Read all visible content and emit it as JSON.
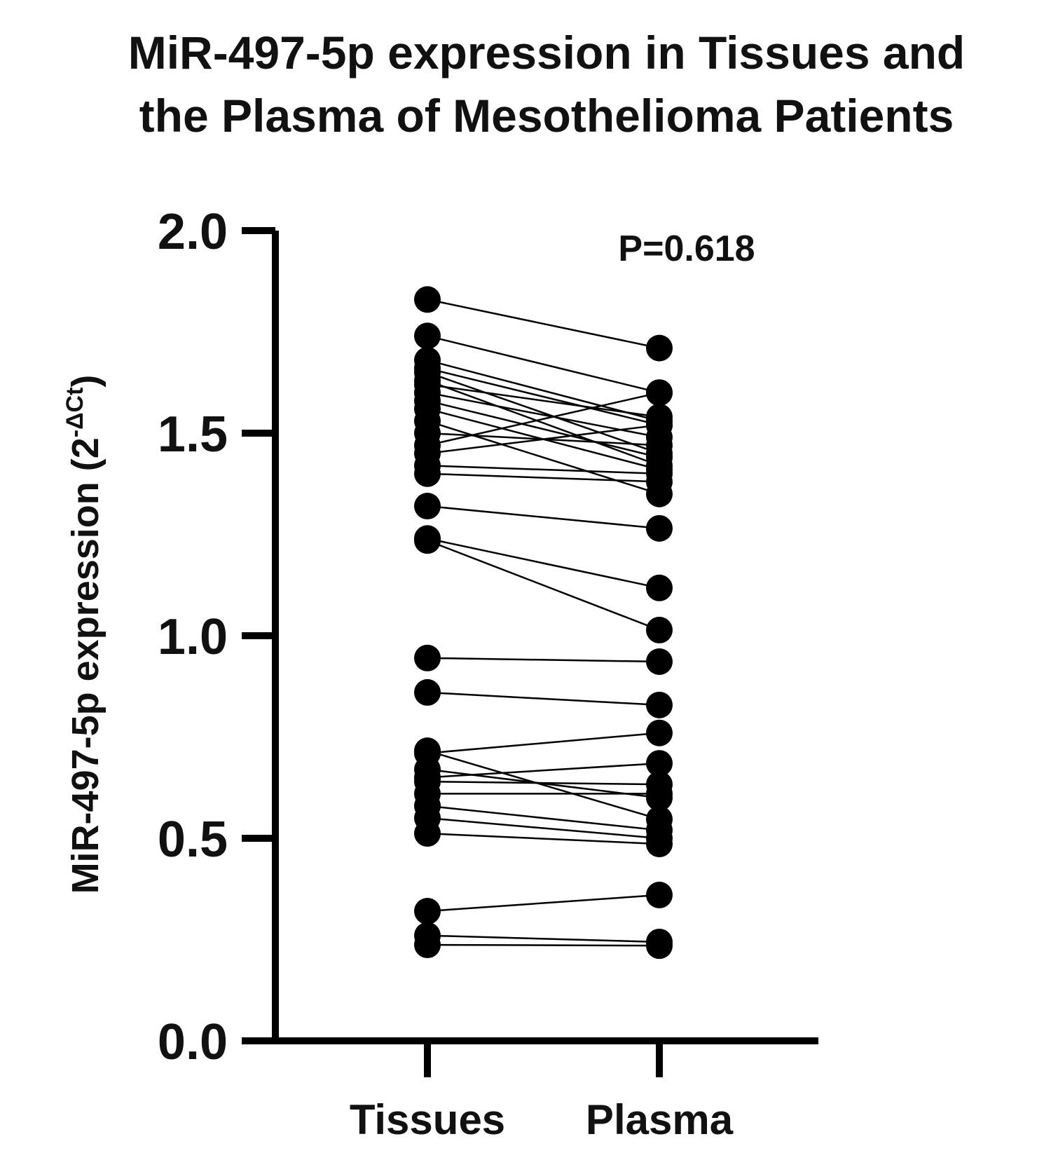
{
  "chart_data": {
    "type": "scatter",
    "subtype": "paired before-after",
    "title_lines": [
      "MiR-497-5p expression in Tissues and",
      "the Plasma of Mesothelioma Patients"
    ],
    "xlabel": "",
    "ylabel": "MiR-497-5p expression (2",
    "ylabel_superscript": "-ΔCt",
    "ylabel_suffix": ")",
    "categories": [
      "Tissues",
      "Plasma"
    ],
    "ylim": [
      0,
      2.0
    ],
    "yticks": [
      0.0,
      0.5,
      1.0,
      1.5,
      2.0
    ],
    "ytick_labels": [
      "0.0",
      "0.5",
      "1.0",
      "1.5",
      "2.0"
    ],
    "grid": false,
    "legend": "none",
    "annotation": "P=0.618",
    "marker_color": "#000000",
    "line_color": "#000000",
    "pairs": [
      {
        "tissues": 1.83,
        "plasma": 1.71
      },
      {
        "tissues": 1.74,
        "plasma": 1.6
      },
      {
        "tissues": 1.68,
        "plasma": 1.53
      },
      {
        "tissues": 1.66,
        "plasma": 1.52
      },
      {
        "tissues": 1.65,
        "plasma": 1.45
      },
      {
        "tissues": 1.63,
        "plasma": 1.42
      },
      {
        "tissues": 1.62,
        "plasma": 1.54
      },
      {
        "tissues": 1.6,
        "plasma": 1.49
      },
      {
        "tissues": 1.58,
        "plasma": 1.44
      },
      {
        "tissues": 1.56,
        "plasma": 1.41
      },
      {
        "tissues": 1.53,
        "plasma": 1.35
      },
      {
        "tissues": 1.5,
        "plasma": 1.47
      },
      {
        "tissues": 1.47,
        "plasma": 1.6
      },
      {
        "tissues": 1.45,
        "plasma": 1.52
      },
      {
        "tissues": 1.42,
        "plasma": 1.4
      },
      {
        "tissues": 1.4,
        "plasma": 1.38
      },
      {
        "tissues": 1.32,
        "plasma": 1.265
      },
      {
        "tissues": 1.24,
        "plasma": 1.118
      },
      {
        "tissues": 1.235,
        "plasma": 1.014
      },
      {
        "tissues": 0.945,
        "plasma": 0.936
      },
      {
        "tissues": 0.86,
        "plasma": 0.829
      },
      {
        "tissues": 0.716,
        "plasma": 0.547
      },
      {
        "tissues": 0.71,
        "plasma": 0.76
      },
      {
        "tissues": 0.67,
        "plasma": 0.6
      },
      {
        "tissues": 0.65,
        "plasma": 0.685
      },
      {
        "tissues": 0.64,
        "plasma": 0.633
      },
      {
        "tissues": 0.61,
        "plasma": 0.61
      },
      {
        "tissues": 0.58,
        "plasma": 0.52
      },
      {
        "tissues": 0.55,
        "plasma": 0.5
      },
      {
        "tissues": 0.512,
        "plasma": 0.486
      },
      {
        "tissues": 0.32,
        "plasma": 0.36
      },
      {
        "tissues": 0.26,
        "plasma": 0.244
      },
      {
        "tissues": 0.237,
        "plasma": 0.235
      }
    ]
  }
}
